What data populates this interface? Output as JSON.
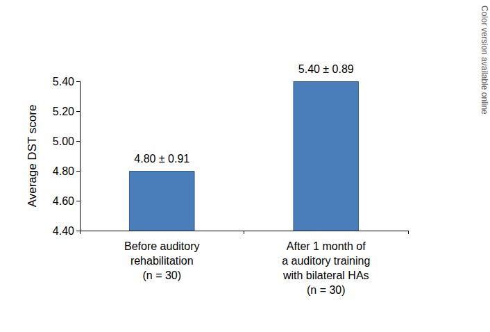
{
  "chart_data": {
    "type": "bar",
    "y_label": "Average DST score",
    "categories": [
      "Before auditory\nrehabilitation\n(n = 30)",
      "After 1 month of\na auditory training\nwith bilateral HAs\n(n = 30)"
    ],
    "values": [
      4.8,
      5.4
    ],
    "value_labels": [
      "4.80 ± 0.91",
      "5.40 ± 0.89"
    ],
    "data_labels": true,
    "color": "#4a7ebb",
    "ylim": [
      4.4,
      5.4
    ],
    "yticks": [
      {
        "value": 4.4,
        "label": "4.40"
      },
      {
        "value": 4.6,
        "label": "4.60"
      },
      {
        "value": 4.8,
        "label": "4.80"
      },
      {
        "value": 5.0,
        "label": "5.00"
      },
      {
        "value": 5.2,
        "label": "5.20"
      },
      {
        "value": 5.4,
        "label": "5.40"
      }
    ],
    "grid": false,
    "annotation": "Color version available online"
  }
}
